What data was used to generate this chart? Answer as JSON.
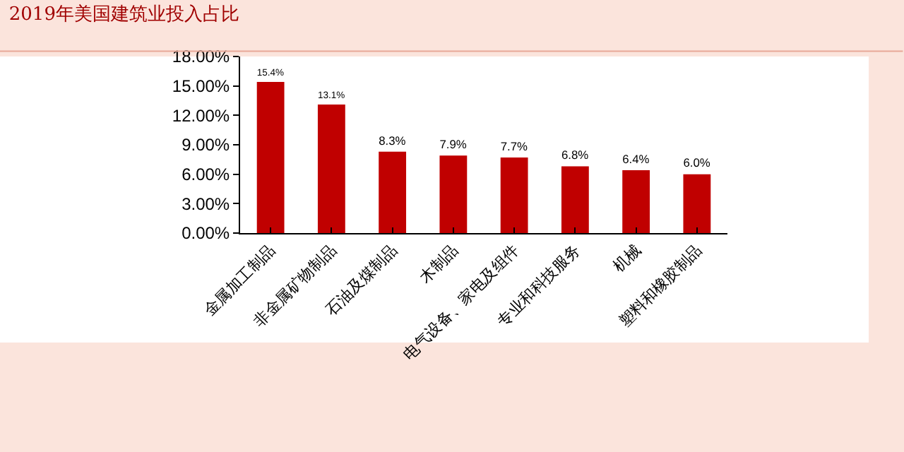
{
  "chart_data": {
    "type": "bar",
    "title": "2019年美国建筑业投入占比",
    "categories": [
      "金属加工制品",
      "非金属矿物制品",
      "石油及煤制品",
      "木制品",
      "电气设备、家电及组件",
      "专业和科技服务",
      "机械",
      "塑料和橡胶制品"
    ],
    "values": [
      15.4,
      13.1,
      8.3,
      7.9,
      7.7,
      6.8,
      6.4,
      6.0
    ],
    "value_labels": [
      "15.4%",
      "13.1%",
      "8.3%",
      "7.9%",
      "7.7%",
      "6.8%",
      "6.4%",
      "6.0%"
    ],
    "color": "#c00000",
    "ylim": [
      0,
      18
    ],
    "yticks": [
      {
        "value": 0,
        "label": "0.00%"
      },
      {
        "value": 3,
        "label": "3.00%"
      },
      {
        "value": 6,
        "label": "6.00%"
      },
      {
        "value": 9,
        "label": "9.00%"
      },
      {
        "value": 12,
        "label": "12.00%"
      },
      {
        "value": 15,
        "label": "15.00%"
      },
      {
        "value": 18,
        "label": "18.00%"
      }
    ],
    "grid": false,
    "legend": false
  }
}
